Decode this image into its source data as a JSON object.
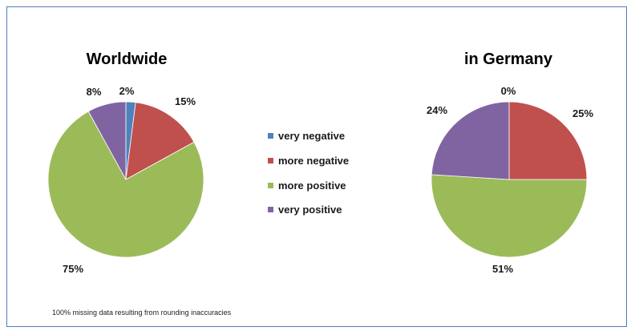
{
  "chart_data": [
    {
      "type": "pie",
      "title": "Worldwide",
      "categories": [
        "very negative",
        "more negative",
        "more positive",
        "very positive"
      ],
      "values": [
        2,
        15,
        75,
        8
      ],
      "data_labels": [
        "2%",
        "15%",
        "75%",
        "8%"
      ]
    },
    {
      "type": "pie",
      "title": "in Germany",
      "categories": [
        "very negative",
        "more negative",
        "more positive",
        "very positive"
      ],
      "values": [
        0,
        25,
        51,
        24
      ],
      "data_labels": [
        "0%",
        "25%",
        "51%",
        "24%"
      ]
    }
  ],
  "legend": {
    "placement": "center",
    "items": [
      {
        "label": "very negative",
        "color": "#4f81bd"
      },
      {
        "label": "more negative",
        "color": "#c0504d"
      },
      {
        "label": "more positive",
        "color": "#9bbb59"
      },
      {
        "label": "very positive",
        "color": "#8064a2"
      }
    ]
  },
  "footnote": "100% missing data resulting from rounding inaccuracies"
}
